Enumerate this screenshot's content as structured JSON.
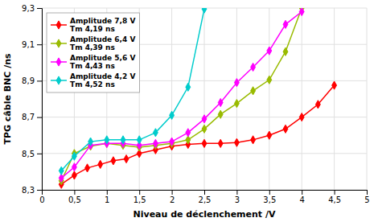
{
  "chart_data": {
    "type": "line",
    "series": [
      {
        "name": "Amplitude 7,8 V\nTm 4,19 ns",
        "color": "#ff0000",
        "marker": "diamond",
        "x": [
          0.3,
          0.5,
          0.7,
          0.9,
          1.1,
          1.3,
          1.5,
          1.75,
          2.0,
          2.25,
          2.5,
          2.75,
          3.0,
          3.25,
          3.5,
          3.75,
          4.0,
          4.25,
          4.5
        ],
        "values": [
          8.33,
          8.38,
          8.42,
          8.44,
          8.46,
          8.47,
          8.5,
          8.52,
          8.54,
          8.55,
          8.555,
          8.555,
          8.56,
          8.575,
          8.6,
          8.635,
          8.7,
          8.77,
          8.875
        ]
      },
      {
        "name": "Amplitude 6,4 V\nTm 4,39 ns",
        "color": "#99bb00",
        "marker": "diamond",
        "x": [
          0.3,
          0.5,
          0.75,
          1.0,
          1.25,
          1.5,
          1.75,
          2.0,
          2.25,
          2.5,
          2.75,
          3.0,
          3.25,
          3.5,
          3.75,
          4.0
        ],
        "values": [
          8.35,
          8.5,
          8.54,
          8.555,
          8.545,
          8.535,
          8.545,
          8.555,
          8.575,
          8.635,
          8.715,
          8.775,
          8.845,
          8.905,
          9.06,
          9.3
        ]
      },
      {
        "name": "Amplitude 5,6 V\nTm 4,43 ns",
        "color": "#ff00ff",
        "marker": "diamond",
        "x": [
          0.3,
          0.5,
          0.75,
          1.0,
          1.25,
          1.5,
          1.75,
          2.0,
          2.25,
          2.5,
          2.75,
          3.0,
          3.25,
          3.5,
          3.75,
          4.0
        ],
        "values": [
          8.365,
          8.425,
          8.545,
          8.555,
          8.555,
          8.545,
          8.555,
          8.565,
          8.615,
          8.69,
          8.78,
          8.89,
          8.975,
          9.065,
          9.21,
          9.28
        ]
      },
      {
        "name": "Amplitude 4,2 V\nTm 4,52 ns",
        "color": "#00cccc",
        "marker": "diamond",
        "x": [
          0.3,
          0.5,
          0.75,
          1.0,
          1.25,
          1.5,
          1.75,
          2.0,
          2.25,
          2.5
        ],
        "values": [
          8.405,
          8.485,
          8.565,
          8.575,
          8.575,
          8.575,
          8.615,
          8.71,
          8.865,
          9.295
        ]
      }
    ],
    "xlabel": "Niveau de déclenchement /V",
    "ylabel": "TPG câble BNC /ns",
    "xlim": [
      0,
      5
    ],
    "ylim": [
      8.3,
      9.3
    ],
    "xticks": [
      0,
      {
        "value": 0.5,
        "label": "0,5"
      },
      1,
      {
        "value": 1.5,
        "label": "1,5"
      },
      2,
      {
        "value": 2.5,
        "label": "2,5"
      },
      3,
      {
        "value": 3.5,
        "label": "3,5"
      },
      4,
      {
        "value": 4.5,
        "label": "4,5"
      },
      5
    ],
    "yticks": [
      {
        "value": 8.3,
        "label": "8,3"
      },
      {
        "value": 8.5,
        "label": "8,5"
      },
      {
        "value": 8.7,
        "label": "8,7"
      },
      {
        "value": 8.9,
        "label": "8,9"
      },
      {
        "value": 9.1,
        "label": "9,1"
      },
      {
        "value": 9.3,
        "label": "9,3"
      }
    ],
    "grid": true,
    "legend": "upper-left"
  }
}
